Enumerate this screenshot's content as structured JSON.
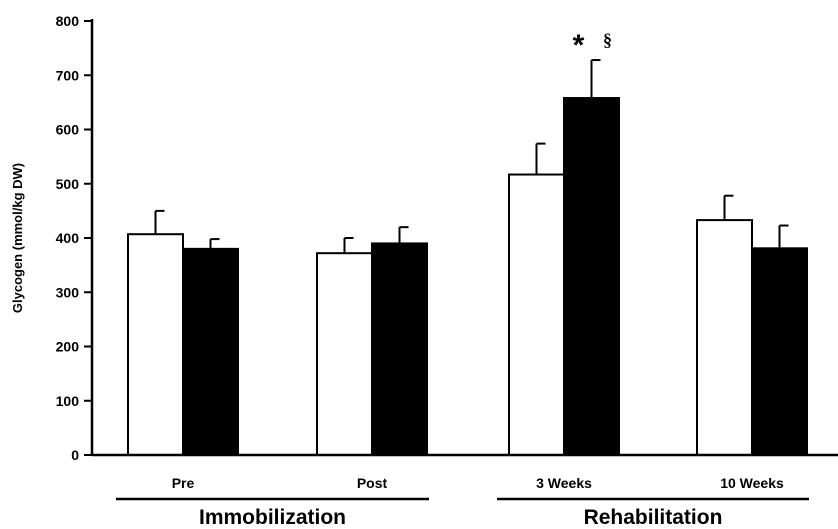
{
  "chart_data": {
    "type": "bar",
    "ylabel": "Glycogen (mmol/kg DW)",
    "ylim": [
      0,
      800
    ],
    "yticks": [
      0,
      100,
      200,
      300,
      400,
      500,
      600,
      700,
      800
    ],
    "categories": [
      "Pre",
      "Post",
      "3 Weeks",
      "10 Weeks"
    ],
    "groups": [
      {
        "label": "Immobilization",
        "categories": [
          "Pre",
          "Post"
        ]
      },
      {
        "label": "Rehabilitation",
        "categories": [
          "3 Weeks",
          "10 Weeks"
        ]
      }
    ],
    "series": [
      {
        "fill": "#ffffff",
        "values": [
          407,
          372,
          517,
          433
        ],
        "errors": [
          43,
          28,
          57,
          45
        ]
      },
      {
        "fill": "#000000",
        "values": [
          380,
          390,
          658,
          381
        ],
        "errors": [
          18,
          30,
          70,
          42
        ]
      }
    ],
    "annotations": [
      {
        "category": "3 Weeks",
        "series": 1,
        "text": "*"
      },
      {
        "category": "3 Weeks",
        "series": 1,
        "text": "§"
      }
    ],
    "grid": false,
    "legend": "none"
  }
}
